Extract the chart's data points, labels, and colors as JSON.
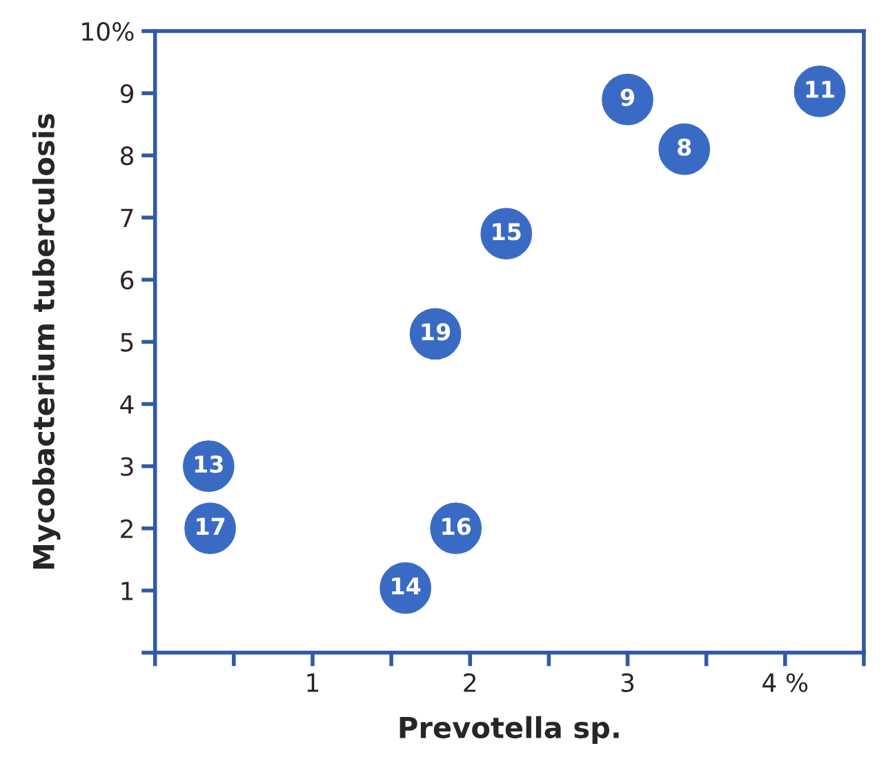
{
  "chart_data": {
    "type": "scatter",
    "xlabel": "Prevotella sp.",
    "ylabel": "Mycobacterium tuberculosis",
    "x": [
      0.34,
      0.35,
      1.59,
      1.91,
      1.78,
      2.23,
      3.0,
      3.36,
      4.22
    ],
    "series": [
      {
        "color": "#3a6bc4",
        "values": [
          3.0,
          2.0,
          1.04,
          2.0,
          5.13,
          6.74,
          8.9,
          8.1,
          9.03
        ]
      }
    ],
    "annotations": [
      {
        "text": "13",
        "x": 0.34,
        "y": 3.0
      },
      {
        "text": "17",
        "x": 0.35,
        "y": 2.0
      },
      {
        "text": "14",
        "x": 1.59,
        "y": 1.04
      },
      {
        "text": "16",
        "x": 1.91,
        "y": 2.0
      },
      {
        "text": "19",
        "x": 1.78,
        "y": 5.13
      },
      {
        "text": "15",
        "x": 2.23,
        "y": 6.74
      },
      {
        "text": "9",
        "x": 3.0,
        "y": 8.9
      },
      {
        "text": "8",
        "x": 3.36,
        "y": 8.1
      },
      {
        "text": "11",
        "x": 4.22,
        "y": 9.03
      }
    ],
    "xlim": [
      0,
      4.5
    ],
    "ylim": [
      0,
      10
    ],
    "xticks": [
      {
        "value": 0,
        "label": null
      },
      {
        "value": 0.5,
        "label": null
      },
      1,
      {
        "value": 1.5,
        "label": null
      },
      2,
      {
        "value": 2.5,
        "label": null
      },
      3,
      {
        "value": 3.5,
        "label": null
      },
      {
        "value": 4,
        "label": "4 %"
      },
      {
        "value": 4.5,
        "label": null
      }
    ],
    "yticks": [
      {
        "value": 0,
        "label": null
      },
      1,
      2,
      3,
      4,
      5,
      6,
      7,
      8,
      9,
      {
        "value": 10,
        "label": "10%"
      }
    ],
    "grid": false,
    "marker": "circle"
  }
}
